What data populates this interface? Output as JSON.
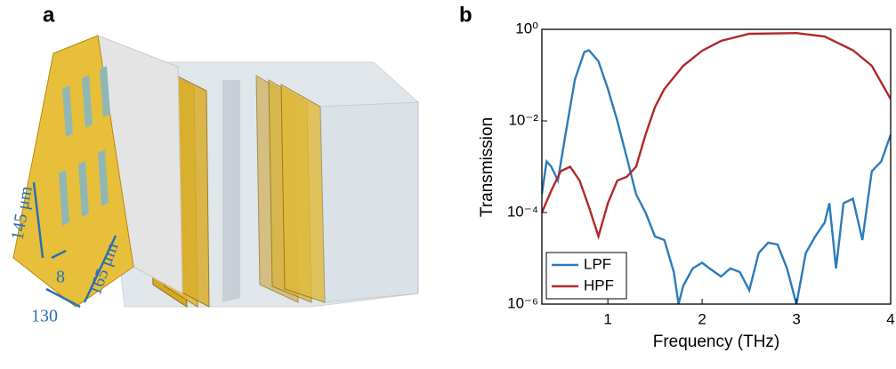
{
  "panel_labels": [
    "a",
    "b"
  ],
  "illustration_labels": [
    "145 μm",
    "8",
    "130",
    "165 μm"
  ],
  "chart_data": {
    "type": "line",
    "x_label": "Frequency (THz)",
    "y_label": "Transmission",
    "xlim": [
      0.3,
      4
    ],
    "xticks": [
      1,
      2,
      3,
      4
    ],
    "ylim": [
      1e-06,
      1
    ],
    "log_y": true,
    "yticks": [
      {
        "value": 1e-06,
        "label": "10⁻⁶"
      },
      {
        "value": 0.0001,
        "label": "10⁻⁴"
      },
      {
        "value": 0.01,
        "label": "10⁻²"
      },
      {
        "value": 1,
        "label": "10⁰"
      }
    ],
    "legend": "lower left",
    "series": [
      {
        "name": "LPF",
        "color": "#2b7bba",
        "x": [
          0.3,
          0.35,
          0.4,
          0.47,
          0.55,
          0.65,
          0.75,
          0.8,
          0.9,
          1.0,
          1.1,
          1.2,
          1.3,
          1.4,
          1.5,
          1.6,
          1.7,
          1.75,
          1.8,
          1.9,
          2.0,
          2.1,
          2.2,
          2.3,
          2.4,
          2.5,
          2.6,
          2.7,
          2.8,
          2.9,
          3.0,
          3.1,
          3.2,
          3.3,
          3.35,
          3.42,
          3.5,
          3.6,
          3.7,
          3.8,
          3.9,
          4.0
        ],
        "values": [
          0.00025,
          0.0013,
          0.001,
          0.0005,
          0.005,
          0.08,
          0.32,
          0.35,
          0.2,
          0.05,
          0.01,
          0.0016,
          0.00025,
          0.0001,
          3e-05,
          2.5e-05,
          5e-06,
          1e-06,
          2.5e-06,
          6e-06,
          8e-06,
          5.6e-06,
          4e-06,
          6e-06,
          5e-06,
          2e-06,
          1.3e-05,
          2.2e-05,
          2e-05,
          6e-06,
          1e-06,
          1.3e-05,
          3e-05,
          6e-05,
          0.00016,
          6e-06,
          0.00016,
          0.0002,
          2.5e-05,
          0.0008,
          0.0013,
          0.005
        ]
      },
      {
        "name": "HPF",
        "color": "#b0282a",
        "x": [
          0.3,
          0.4,
          0.5,
          0.6,
          0.7,
          0.8,
          0.9,
          1.0,
          1.1,
          1.2,
          1.3,
          1.4,
          1.5,
          1.6,
          1.8,
          2.0,
          2.2,
          2.5,
          3.0,
          3.3,
          3.6,
          3.8,
          4.0
        ],
        "values": [
          0.0001,
          0.0003,
          0.0008,
          0.001,
          0.0005,
          0.00013,
          3e-05,
          0.00016,
          0.0005,
          0.0006,
          0.001,
          0.005,
          0.02,
          0.05,
          0.16,
          0.34,
          0.56,
          0.8,
          0.83,
          0.7,
          0.35,
          0.16,
          0.03
        ]
      }
    ]
  }
}
